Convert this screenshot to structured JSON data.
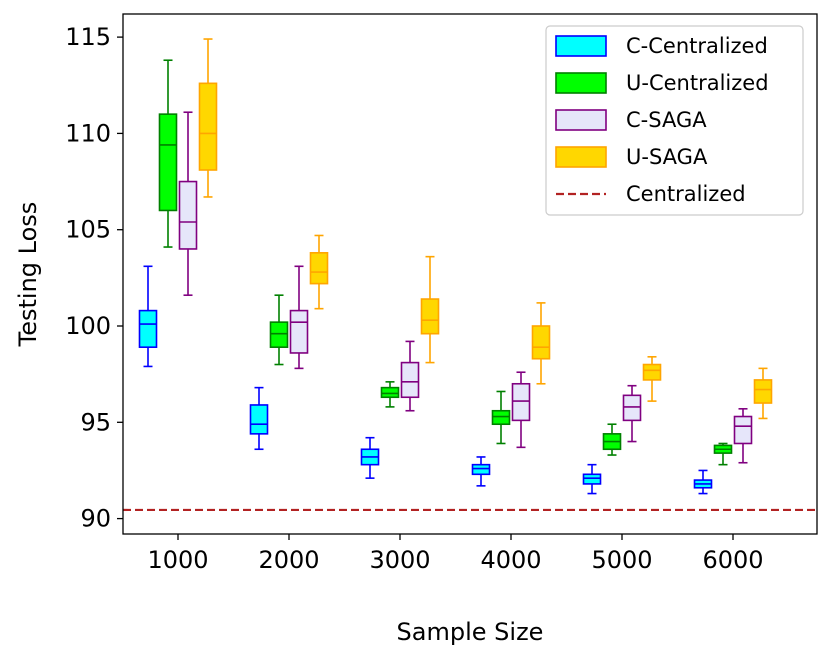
{
  "chart_data": {
    "type": "box",
    "xlabel": "Sample Size",
    "ylabel": "Testing Loss",
    "ylim": [
      89.2,
      116.2
    ],
    "yticks": [
      90,
      95,
      100,
      105,
      110,
      115
    ],
    "categories": [
      "1000",
      "2000",
      "3000",
      "4000",
      "5000",
      "6000"
    ],
    "legend_position": "top-right",
    "series": [
      {
        "name": "C-Centralized",
        "color": "#0000ff",
        "fill": "#00ffff",
        "boxes": [
          {
            "whislo": 97.9,
            "q1": 98.9,
            "med": 100.1,
            "q3": 100.8,
            "whishi": 103.1
          },
          {
            "whislo": 93.6,
            "q1": 94.4,
            "med": 94.9,
            "q3": 95.9,
            "whishi": 96.8
          },
          {
            "whislo": 92.1,
            "q1": 92.8,
            "med": 93.2,
            "q3": 93.6,
            "whishi": 94.2
          },
          {
            "whislo": 91.7,
            "q1": 92.3,
            "med": 92.6,
            "q3": 92.8,
            "whishi": 93.2
          },
          {
            "whislo": 91.3,
            "q1": 91.8,
            "med": 92.1,
            "q3": 92.3,
            "whishi": 92.8
          },
          {
            "whislo": 91.3,
            "q1": 91.6,
            "med": 91.8,
            "q3": 92.0,
            "whishi": 92.5
          }
        ]
      },
      {
        "name": "U-Centralized",
        "color": "#008000",
        "fill": "#00ff00",
        "boxes": [
          {
            "whislo": 104.1,
            "q1": 106.0,
            "med": 109.4,
            "q3": 111.0,
            "whishi": 113.8
          },
          {
            "whislo": 98.0,
            "q1": 98.9,
            "med": 99.6,
            "q3": 100.2,
            "whishi": 101.6
          },
          {
            "whislo": 95.8,
            "q1": 96.3,
            "med": 96.5,
            "q3": 96.8,
            "whishi": 97.1
          },
          {
            "whislo": 93.9,
            "q1": 94.9,
            "med": 95.3,
            "q3": 95.6,
            "whishi": 96.6
          },
          {
            "whislo": 93.3,
            "q1": 93.6,
            "med": 94.0,
            "q3": 94.4,
            "whishi": 94.9
          },
          {
            "whislo": 92.8,
            "q1": 93.4,
            "med": 93.6,
            "q3": 93.8,
            "whishi": 93.9
          }
        ]
      },
      {
        "name": "C-SAGA",
        "color": "#800080",
        "fill": "#e6e6fa",
        "boxes": [
          {
            "whislo": 101.6,
            "q1": 104.0,
            "med": 105.4,
            "q3": 107.5,
            "whishi": 111.1
          },
          {
            "whislo": 97.8,
            "q1": 98.6,
            "med": 100.2,
            "q3": 100.8,
            "whishi": 103.1
          },
          {
            "whislo": 95.6,
            "q1": 96.3,
            "med": 97.1,
            "q3": 98.1,
            "whishi": 99.2
          },
          {
            "whislo": 93.7,
            "q1": 95.1,
            "med": 96.1,
            "q3": 97.0,
            "whishi": 97.6
          },
          {
            "whislo": 94.0,
            "q1": 95.1,
            "med": 95.8,
            "q3": 96.4,
            "whishi": 96.9
          },
          {
            "whislo": 92.9,
            "q1": 93.9,
            "med": 94.8,
            "q3": 95.3,
            "whishi": 95.7
          }
        ]
      },
      {
        "name": "U-SAGA",
        "color": "#ffa500",
        "fill": "#ffd700",
        "boxes": [
          {
            "whislo": 106.7,
            "q1": 108.1,
            "med": 110.0,
            "q3": 112.6,
            "whishi": 114.9
          },
          {
            "whislo": 100.9,
            "q1": 102.2,
            "med": 102.8,
            "q3": 103.8,
            "whishi": 104.7
          },
          {
            "whislo": 98.1,
            "q1": 99.6,
            "med": 100.3,
            "q3": 101.4,
            "whishi": 103.6
          },
          {
            "whislo": 97.0,
            "q1": 98.3,
            "med": 98.9,
            "q3": 100.0,
            "whishi": 101.2
          },
          {
            "whislo": 96.1,
            "q1": 97.2,
            "med": 97.7,
            "q3": 98.0,
            "whishi": 98.4
          },
          {
            "whislo": 95.2,
            "q1": 96.0,
            "med": 96.7,
            "q3": 97.2,
            "whishi": 97.8
          }
        ]
      }
    ],
    "reference_line": {
      "name": "Centralized",
      "value": 90.45,
      "color": "#b22222",
      "style": "dashed"
    }
  }
}
